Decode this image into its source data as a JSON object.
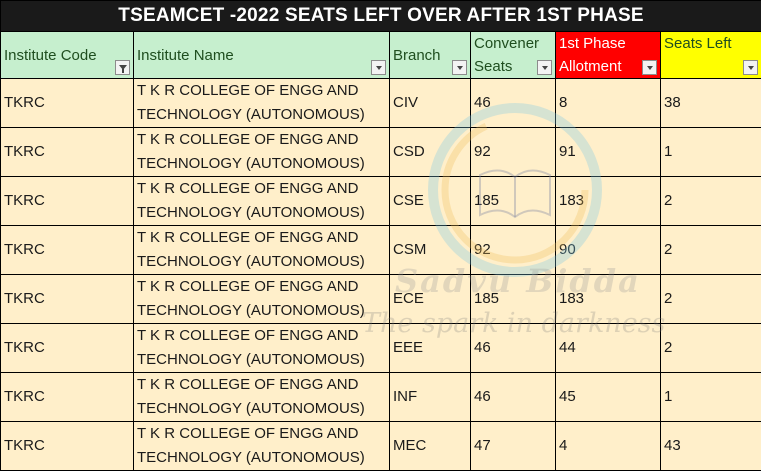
{
  "title": "TSEAMCET -2022 SEATS LEFT OVER AFTER 1ST PHASE",
  "columns": {
    "code": "Institute Code",
    "name": "Institute Name",
    "branch": "Branch",
    "convener": [
      "Convener",
      "Seats"
    ],
    "allotment": [
      "1st Phase",
      "Allotment"
    ],
    "left": "Seats Left"
  },
  "colors": {
    "header_green": "#c6efce",
    "header_red": "#ff0000",
    "header_yellow": "#ffff00",
    "row_fill": "#ffefca",
    "title_bar": "#1a1a1a"
  },
  "rows": [
    {
      "code": "TKRC",
      "name1": "T K R COLLEGE OF ENGG AND",
      "name2": "TECHNOLOGY (AUTONOMOUS)",
      "branch": "CIV",
      "convener": "46",
      "allotment": "8",
      "left": "38"
    },
    {
      "code": "TKRC",
      "name1": "T K R COLLEGE OF ENGG AND",
      "name2": "TECHNOLOGY (AUTONOMOUS)",
      "branch": "CSD",
      "convener": "92",
      "allotment": "91",
      "left": "1"
    },
    {
      "code": "TKRC",
      "name1": "T K R COLLEGE OF ENGG AND",
      "name2": "TECHNOLOGY (AUTONOMOUS)",
      "branch": "CSE",
      "convener": "185",
      "allotment": "183",
      "left": "2"
    },
    {
      "code": "TKRC",
      "name1": "T K R COLLEGE OF ENGG AND",
      "name2": "TECHNOLOGY (AUTONOMOUS)",
      "branch": "CSM",
      "convener": "92",
      "allotment": "90",
      "left": "2"
    },
    {
      "code": "TKRC",
      "name1": "T K R COLLEGE OF ENGG AND",
      "name2": "TECHNOLOGY (AUTONOMOUS)",
      "branch": "ECE",
      "convener": "185",
      "allotment": "183",
      "left": "2"
    },
    {
      "code": "TKRC",
      "name1": "T K R COLLEGE OF ENGG AND",
      "name2": "TECHNOLOGY (AUTONOMOUS)",
      "branch": "EEE",
      "convener": "46",
      "allotment": "44",
      "left": "2"
    },
    {
      "code": "TKRC",
      "name1": "T K R COLLEGE OF ENGG AND",
      "name2": "TECHNOLOGY (AUTONOMOUS)",
      "branch": "INF",
      "convener": "46",
      "allotment": "45",
      "left": "1"
    },
    {
      "code": "TKRC",
      "name1": "T K R COLLEGE OF ENGG AND",
      "name2": "TECHNOLOGY (AUTONOMOUS)",
      "branch": "MEC",
      "convener": "47",
      "allotment": "4",
      "left": "43"
    }
  ],
  "watermark": {
    "brand": "Sadvu Bidda",
    "tagline": "The spark in darkness"
  }
}
